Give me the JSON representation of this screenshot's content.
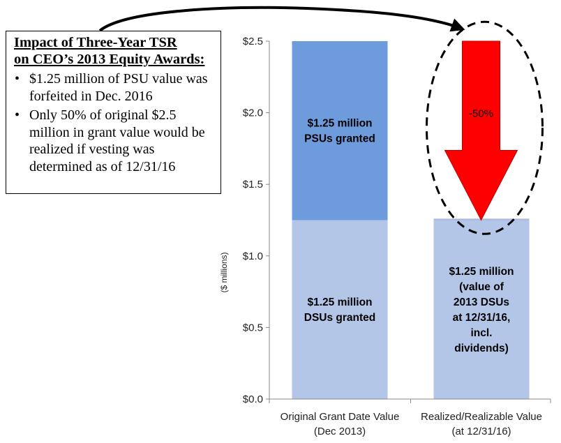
{
  "chart_data": {
    "type": "bar",
    "stacked": true,
    "categories": [
      [
        "Original Grant Date Value",
        "(Dec 2013)"
      ],
      [
        "Realized/Realizable Value",
        "(at 12/31/16)"
      ]
    ],
    "ylabel": "($ millions)",
    "ylim": [
      0,
      2.5
    ],
    "yticks": [
      {
        "value": 0,
        "label": "$0.0"
      },
      {
        "value": 0.5,
        "label": "$0.5"
      },
      {
        "value": 1.0,
        "label": "$1.0"
      },
      {
        "value": 1.5,
        "label": "$1.5"
      },
      {
        "value": 2.0,
        "label": "$2.0"
      },
      {
        "value": 2.5,
        "label": "$2.5"
      }
    ],
    "grid": false,
    "bars": [
      {
        "category": 0,
        "segments": [
          {
            "base": 0,
            "value": 1.25,
            "color": "#b3c6e8",
            "label": [
              "$1.25 million",
              "DSUs granted"
            ]
          },
          {
            "base": 1.25,
            "value": 1.25,
            "color": "#6e9bdc",
            "label": [
              "$1.25 million",
              "PSUs granted"
            ]
          }
        ]
      },
      {
        "category": 1,
        "segments": [
          {
            "base": 0,
            "value": 1.25,
            "color": "#b3c6e8",
            "label": [
              "$1.25 million",
              "(value of",
              "2013 DSUs",
              "at 12/31/16,",
              "incl.",
              "dividends)"
            ]
          },
          {
            "base": 1.25,
            "value": 0.01,
            "color": "#a8b8da",
            "label": []
          }
        ]
      }
    ],
    "annotations": {
      "change_arrow": {
        "category": 1,
        "from": 2.5,
        "to": 1.25,
        "label": "-50%",
        "color": "#ff0000"
      }
    }
  },
  "impact_box": {
    "title_line1": "Impact of Three-Year TSR",
    "title_line2": "on CEO’s 2013 Equity Awards:",
    "bullet_symbol": "•",
    "bullets": [
      "$1.25 million of PSU value was forfeited in Dec. 2016",
      "Only 50% of original $2.5 million in grant value would be realized if vesting was determined as of 12/31/16"
    ]
  }
}
